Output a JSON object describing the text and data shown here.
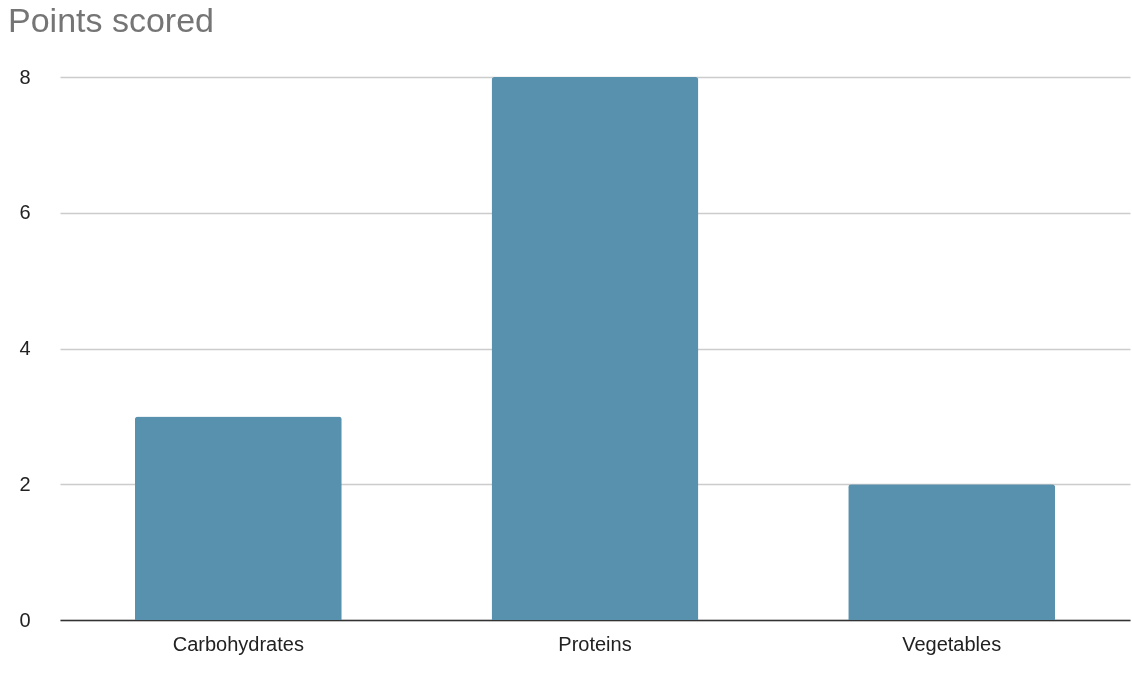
{
  "chart_data": {
    "type": "bar",
    "title": "Points scored",
    "categories": [
      "Carbohydrates",
      "Proteins",
      "Vegetables"
    ],
    "values": [
      3,
      8,
      2
    ],
    "color": "#5891ae",
    "ylim": [
      0,
      8
    ],
    "yticks": [
      0,
      2,
      4,
      6,
      8
    ],
    "grid": "y",
    "legend": false
  }
}
